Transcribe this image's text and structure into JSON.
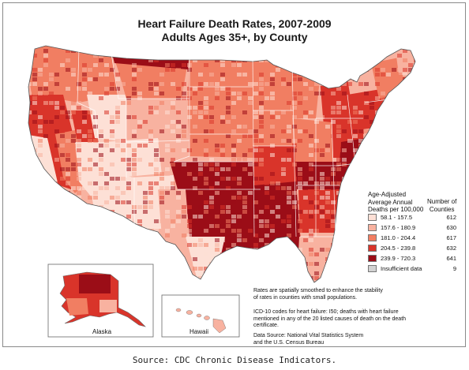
{
  "title": "Heart Failure Death Rates, 2007-2009",
  "subtitle": "Adults Ages 35+, by County",
  "legend": {
    "title_lines": [
      "Age-Adjusted",
      "Average Annual",
      "Deaths per 100,000"
    ],
    "count_title_lines": [
      "Number of",
      "Counties"
    ],
    "items": [
      {
        "label": "58.1 - 157.5",
        "count": "612",
        "color": "#fde0d6"
      },
      {
        "label": "157.6 - 180.9",
        "count": "630",
        "color": "#f8b2a0"
      },
      {
        "label": "181.0 - 204.4",
        "count": "617",
        "color": "#f17e62"
      },
      {
        "label": "204.5 - 239.8",
        "count": "632",
        "color": "#d9342a"
      },
      {
        "label": "239.9 - 720.3",
        "count": "641",
        "color": "#9b0d17"
      },
      {
        "label": "Insufficient data",
        "count": "9",
        "color": "#d2d2d2"
      }
    ]
  },
  "notes": {
    "smoothing": [
      "Rates are spatially smoothed to enhance the stability",
      "of rates in counties with small populations."
    ],
    "icd": [
      "ICD-10 codes for heart failure: I50; deaths with heart failure",
      "mentioned in any of the 20 listed causes of death on the death",
      "certificate."
    ],
    "source": [
      "Data Source: National Vital Statistics System",
      "and the U.S. Census Bureau"
    ]
  },
  "insets": {
    "alaska": "Alaska",
    "hawaii": "Hawaii"
  },
  "caption": "Source: CDC Chronic Disease Indicators.",
  "map_regions": [
    {
      "name": "pacific-northwest",
      "class": 3
    },
    {
      "name": "california-north",
      "class": 4
    },
    {
      "name": "california-central-valley",
      "class": 3
    },
    {
      "name": "california-coast",
      "class": 1
    },
    {
      "name": "nevada-west",
      "class": 4
    },
    {
      "name": "great-basin",
      "class": 1
    },
    {
      "name": "idaho-south",
      "class": 1
    },
    {
      "name": "montana",
      "class": 3
    },
    {
      "name": "montana-north",
      "class": 5
    },
    {
      "name": "wyoming",
      "class": 2
    },
    {
      "name": "utah-colorado-plateau",
      "class": 1
    },
    {
      "name": "colorado-east",
      "class": 2
    },
    {
      "name": "arizona",
      "class": 1
    },
    {
      "name": "new-mexico",
      "class": 1
    },
    {
      "name": "dakotas",
      "class": 3
    },
    {
      "name": "nebraska-kansas",
      "class": 3
    },
    {
      "name": "oklahoma",
      "class": 5
    },
    {
      "name": "texas-east",
      "class": 5
    },
    {
      "name": "texas-west",
      "class": 2
    },
    {
      "name": "south-texas",
      "class": 1
    },
    {
      "name": "minnesota",
      "class": 3
    },
    {
      "name": "iowa",
      "class": 3
    },
    {
      "name": "missouri",
      "class": 4
    },
    {
      "name": "arkansas-mississippi-valley",
      "class": 5
    },
    {
      "name": "louisiana",
      "class": 5
    },
    {
      "name": "wisconsin",
      "class": 3
    },
    {
      "name": "michigan",
      "class": 4
    },
    {
      "name": "illinois-indiana",
      "class": 3
    },
    {
      "name": "ohio",
      "class": 4
    },
    {
      "name": "kentucky-tennessee",
      "class": 5
    },
    {
      "name": "alabama-georgia",
      "class": 4
    },
    {
      "name": "carolinas",
      "class": 3
    },
    {
      "name": "florida",
      "class": 2
    },
    {
      "name": "appalachia",
      "class": 5
    },
    {
      "name": "virginia-maryland",
      "class": 2
    },
    {
      "name": "pennsylvania-new-york",
      "class": 4
    },
    {
      "name": "new-england",
      "class": 3
    },
    {
      "name": "maine",
      "class": 2
    }
  ]
}
